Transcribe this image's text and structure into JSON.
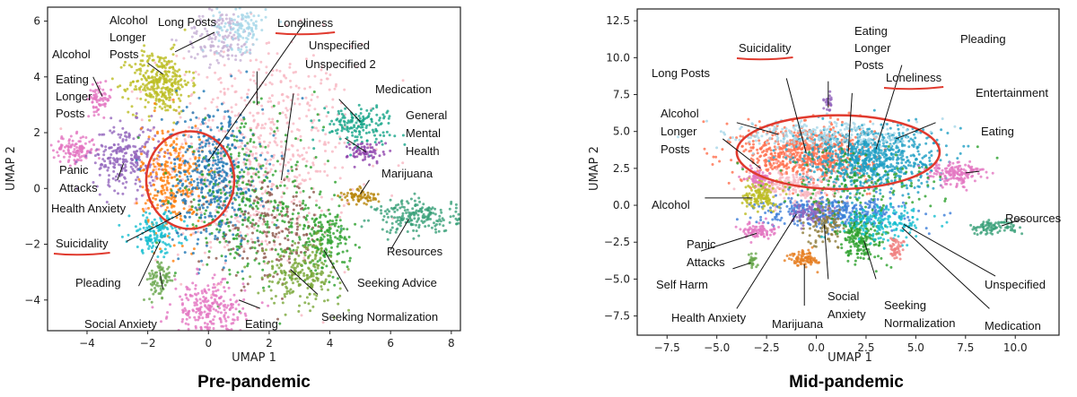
{
  "chart_data": [
    {
      "type": "scatter",
      "caption": "Pre-pandemic",
      "xlabel": "UMAP 1",
      "ylabel": "UMAP 2",
      "xlim": [
        -5.3,
        8.3
      ],
      "ylim": [
        -5.1,
        6.5
      ],
      "xticks": [
        -4,
        -2,
        0,
        2,
        4,
        6,
        8
      ],
      "yticks": [
        -4,
        -2,
        0,
        2,
        4,
        6
      ],
      "clusters": [
        {
          "color": "#f7b6c2",
          "cx": 1.6,
          "cy": 1.2,
          "sx": 1.6,
          "sy": 2.0,
          "n": 700
        },
        {
          "color": "#bcbd22",
          "cx": -1.6,
          "cy": 3.8,
          "sx": 0.5,
          "sy": 0.55,
          "n": 320
        },
        {
          "color": "#c5b0d5",
          "cx": 0.4,
          "cy": 5.4,
          "sx": 0.6,
          "sy": 0.5,
          "n": 140
        },
        {
          "color": "#a6d7e8",
          "cx": 1.1,
          "cy": 5.8,
          "sx": 0.4,
          "sy": 0.4,
          "n": 110
        },
        {
          "color": "#e377c2",
          "cx": -3.6,
          "cy": 3.2,
          "sx": 0.2,
          "sy": 0.25,
          "n": 70
        },
        {
          "color": "#e377c2",
          "cx": -4.4,
          "cy": 1.4,
          "sx": 0.35,
          "sy": 0.25,
          "n": 120
        },
        {
          "color": "#9467bd",
          "cx": -2.7,
          "cy": 1.1,
          "sx": 0.55,
          "sy": 0.6,
          "n": 260
        },
        {
          "color": "#ff7f0e",
          "cx": -1.2,
          "cy": 0.3,
          "sx": 0.5,
          "sy": 1.0,
          "n": 300
        },
        {
          "color": "#1f77b4",
          "cx": 0.2,
          "cy": 0.4,
          "sx": 0.8,
          "sy": 1.3,
          "n": 480
        },
        {
          "color": "#17becf",
          "cx": -1.7,
          "cy": -1.6,
          "sx": 0.45,
          "sy": 0.35,
          "n": 140
        },
        {
          "color": "#2ca02c",
          "cx": 1.3,
          "cy": -0.5,
          "sx": 1.2,
          "sy": 1.4,
          "n": 320
        },
        {
          "color": "#8c564b",
          "cx": 2.1,
          "cy": -1.6,
          "sx": 0.9,
          "sy": 0.9,
          "n": 180
        },
        {
          "color": "#2ca02c",
          "cx": 3.8,
          "cy": -1.8,
          "sx": 0.45,
          "sy": 0.6,
          "n": 180
        },
        {
          "color": "#17a589",
          "cx": 4.9,
          "cy": 2.3,
          "sx": 0.6,
          "sy": 0.35,
          "n": 160
        },
        {
          "color": "#8e44ad",
          "cx": 5.2,
          "cy": 1.3,
          "sx": 0.3,
          "sy": 0.2,
          "n": 70
        },
        {
          "color": "#b8860b",
          "cx": 5.0,
          "cy": -0.3,
          "sx": 0.3,
          "sy": 0.15,
          "n": 70
        },
        {
          "color": "#3aa079",
          "cx": 6.9,
          "cy": -1.0,
          "sx": 0.7,
          "sy": 0.3,
          "n": 200
        },
        {
          "color": "#e377c2",
          "cx": 0.0,
          "cy": -4.4,
          "sx": 0.6,
          "sy": 0.55,
          "n": 260
        },
        {
          "color": "#6aa84f",
          "cx": -1.6,
          "cy": -3.3,
          "sx": 0.2,
          "sy": 0.35,
          "n": 80
        },
        {
          "color": "#7aa83a",
          "cx": 3.1,
          "cy": -3.0,
          "sx": 0.65,
          "sy": 0.55,
          "n": 220
        }
      ],
      "annotations": [
        {
          "text": "Long Posts"
        },
        {
          "text": "Loneliness",
          "underline": true
        },
        {
          "text": "Alcohol"
        },
        {
          "text": "Longer"
        },
        {
          "text": "Posts"
        },
        {
          "text": "Unspecified"
        },
        {
          "text": "Alcohol"
        },
        {
          "text": "Unspecified 2"
        },
        {
          "text": "Eating"
        },
        {
          "text": "Longer"
        },
        {
          "text": "Posts"
        },
        {
          "text": "Medication"
        },
        {
          "text": "General"
        },
        {
          "text": "Mental"
        },
        {
          "text": "Health"
        },
        {
          "text": "Panic"
        },
        {
          "text": "Attacks"
        },
        {
          "text": "Marijuana"
        },
        {
          "text": "Health Anxiety"
        },
        {
          "text": "Suicidality",
          "underline": true
        },
        {
          "text": "Resources"
        },
        {
          "text": "Pleading"
        },
        {
          "text": "Seeking Advice"
        },
        {
          "text": "Social Anxiety"
        },
        {
          "text": "Eating"
        },
        {
          "text": "Seeking Normalization"
        }
      ]
    },
    {
      "type": "scatter",
      "caption": "Mid-pandemic",
      "xlabel": "UMAP 1",
      "ylabel": "UMAP 2",
      "xlim": [
        -9.0,
        12.2
      ],
      "ylim": [
        -8.8,
        13.3
      ],
      "xticks": [
        -7.5,
        -5.0,
        -2.5,
        0.0,
        2.5,
        5.0,
        7.5,
        10.0
      ],
      "yticks": [
        -7.5,
        -5.0,
        -2.5,
        0.0,
        2.5,
        5.0,
        7.5,
        10.0,
        12.5
      ],
      "clusters": [
        {
          "color": "#ff6f4e",
          "cx": -0.5,
          "cy": 3.5,
          "sx": 1.6,
          "sy": 1.0,
          "n": 700
        },
        {
          "color": "#1f9fc4",
          "cx": 2.6,
          "cy": 3.2,
          "sx": 1.7,
          "sy": 1.1,
          "n": 800
        },
        {
          "color": "#a6d7e8",
          "cx": 0.5,
          "cy": 4.8,
          "sx": 2.5,
          "sy": 0.5,
          "n": 250
        },
        {
          "color": "#f7b6c2",
          "cx": -1.0,
          "cy": 1.2,
          "sx": 1.2,
          "sy": 0.6,
          "n": 200
        },
        {
          "color": "#3b7dd8",
          "cx": 0.8,
          "cy": -0.5,
          "sx": 1.8,
          "sy": 0.5,
          "n": 380
        },
        {
          "color": "#9467bd",
          "cx": -0.3,
          "cy": -0.5,
          "sx": 0.5,
          "sy": 0.35,
          "n": 90
        },
        {
          "color": "#bcbd22",
          "cx": -2.8,
          "cy": 0.7,
          "sx": 0.4,
          "sy": 0.5,
          "n": 140
        },
        {
          "color": "#e377c2",
          "cx": -2.9,
          "cy": 1.9,
          "sx": 0.3,
          "sy": 0.35,
          "n": 70
        },
        {
          "color": "#e377c2",
          "cx": -2.9,
          "cy": -1.7,
          "sx": 0.4,
          "sy": 0.25,
          "n": 90
        },
        {
          "color": "#6aa84f",
          "cx": -3.2,
          "cy": -3.8,
          "sx": 0.12,
          "sy": 0.2,
          "n": 30
        },
        {
          "color": "#e67e22",
          "cx": -0.6,
          "cy": -3.6,
          "sx": 0.35,
          "sy": 0.3,
          "n": 90
        },
        {
          "color": "#8e7d3c",
          "cx": 0.5,
          "cy": -1.3,
          "sx": 0.5,
          "sy": 0.7,
          "n": 100
        },
        {
          "color": "#2ca02c",
          "cx": 2.3,
          "cy": -2.2,
          "sx": 0.6,
          "sy": 0.8,
          "n": 200
        },
        {
          "color": "#17becf",
          "cx": 3.5,
          "cy": -1.2,
          "sx": 1.0,
          "sy": 0.6,
          "n": 170
        },
        {
          "color": "#f08080",
          "cx": 4.0,
          "cy": -3.0,
          "sx": 0.2,
          "sy": 0.4,
          "n": 50
        },
        {
          "color": "#e377c2",
          "cx": 7.0,
          "cy": 2.2,
          "sx": 0.7,
          "sy": 0.4,
          "n": 160
        },
        {
          "color": "#3aa079",
          "cx": 8.8,
          "cy": -1.5,
          "sx": 0.6,
          "sy": 0.25,
          "n": 90
        },
        {
          "color": "#9467bd",
          "cx": 0.6,
          "cy": 7.0,
          "sx": 0.12,
          "sy": 0.3,
          "n": 25
        },
        {
          "color": "#2ca02c",
          "cx": 2.0,
          "cy": 1.5,
          "sx": 2.2,
          "sy": 1.0,
          "n": 150
        }
      ],
      "annotations": [
        {
          "text": "Eating"
        },
        {
          "text": "Longer"
        },
        {
          "text": "Posts"
        },
        {
          "text": "Suicidality",
          "underline": true
        },
        {
          "text": "Pleading"
        },
        {
          "text": "Long Posts"
        },
        {
          "text": "Loneliness",
          "underline": true
        },
        {
          "text": "Entertainment"
        },
        {
          "text": "Alcohol"
        },
        {
          "text": "Longer"
        },
        {
          "text": "Posts"
        },
        {
          "text": "Eating"
        },
        {
          "text": "Alcohol"
        },
        {
          "text": "Resources"
        },
        {
          "text": "Panic"
        },
        {
          "text": "Attacks"
        },
        {
          "text": "Self Harm"
        },
        {
          "text": "Unspecified"
        },
        {
          "text": "Social"
        },
        {
          "text": "Anxiety"
        },
        {
          "text": "Seeking"
        },
        {
          "text": "Normalization"
        },
        {
          "text": "Health Anxiety"
        },
        {
          "text": "Marijuana"
        },
        {
          "text": "Medication"
        }
      ]
    }
  ]
}
